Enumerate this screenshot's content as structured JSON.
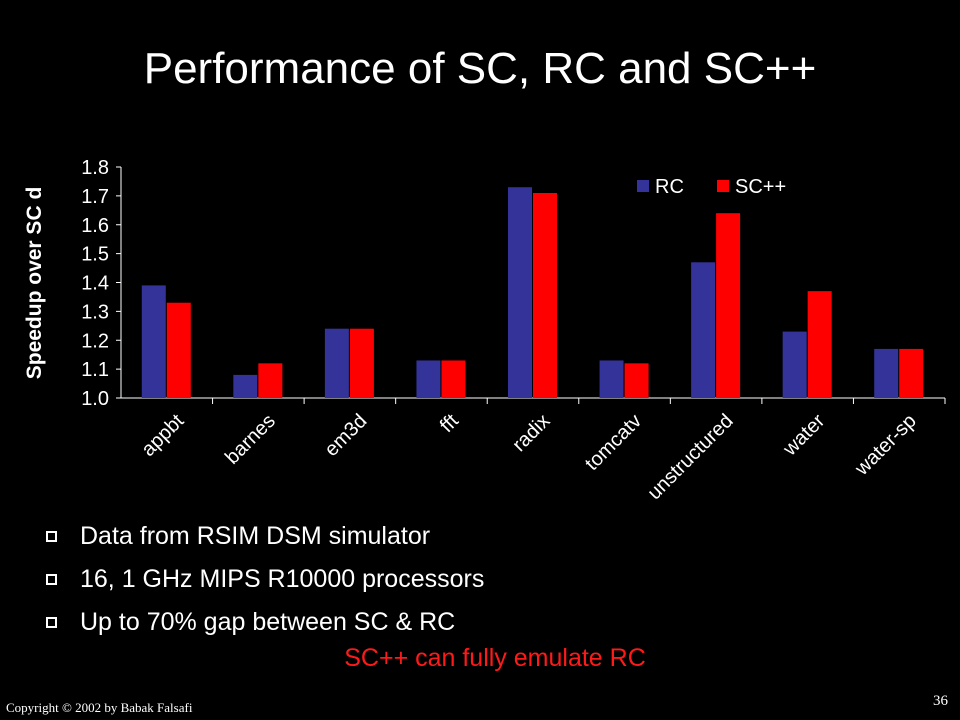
{
  "slide": {
    "title": "Performance of SC, RC and SC++",
    "bullets": [
      "Data from RSIM DSM simulator",
      "16, 1 GHz MIPS R10000 processors",
      "Up to 70% gap between SC & RC"
    ],
    "highlight": "SC++ can fully emulate RC",
    "copyright": "Copyright © 2002  by Babak Falsafi",
    "page_number": "36"
  },
  "chart_data": {
    "type": "bar",
    "title": "",
    "ylabel": "Speedup over SC      d",
    "xlabel": "",
    "ylim": [
      1.0,
      1.8
    ],
    "yticks": [
      "1.0",
      "1.1",
      "1.2",
      "1.3",
      "1.4",
      "1.5",
      "1.6",
      "1.7",
      "1.8"
    ],
    "categories": [
      "appbt",
      "barnes",
      "em3d",
      "fft",
      "radix",
      "tomcatv",
      "unstructured",
      "water",
      "water-sp"
    ],
    "series": [
      {
        "name": "RC",
        "color": "#333399",
        "values": [
          1.39,
          1.08,
          1.24,
          1.13,
          1.73,
          1.13,
          1.47,
          1.23,
          1.17
        ]
      },
      {
        "name": "SC++",
        "color": "#ff0000",
        "values": [
          1.33,
          1.12,
          1.24,
          1.13,
          1.71,
          1.12,
          1.64,
          1.37,
          1.17
        ]
      }
    ],
    "legend_position": "top-right",
    "grid": false
  }
}
